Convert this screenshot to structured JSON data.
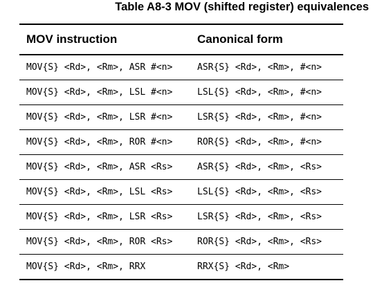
{
  "caption": "Table A8-3 MOV (shifted register) equivalences",
  "columns": {
    "instruction": "MOV instruction",
    "canonical": "Canonical form"
  },
  "rows": [
    {
      "instruction": "MOV{S} <Rd>, <Rm>, ASR #<n>",
      "canonical": "ASR{S} <Rd>, <Rm>, #<n>"
    },
    {
      "instruction": "MOV{S} <Rd>, <Rm>, LSL #<n>",
      "canonical": "LSL{S} <Rd>, <Rm>, #<n>"
    },
    {
      "instruction": "MOV{S} <Rd>, <Rm>, LSR #<n>",
      "canonical": "LSR{S} <Rd>, <Rm>, #<n>"
    },
    {
      "instruction": "MOV{S} <Rd>, <Rm>, ROR #<n>",
      "canonical": "ROR{S} <Rd>, <Rm>, #<n>"
    },
    {
      "instruction": "MOV{S} <Rd>, <Rm>, ASR <Rs>",
      "canonical": "ASR{S} <Rd>, <Rm>, <Rs>"
    },
    {
      "instruction": "MOV{S} <Rd>, <Rm>, LSL <Rs>",
      "canonical": "LSL{S} <Rd>, <Rm>, <Rs>"
    },
    {
      "instruction": "MOV{S} <Rd>, <Rm>, LSR <Rs>",
      "canonical": "LSR{S} <Rd>, <Rm>, <Rs>"
    },
    {
      "instruction": "MOV{S} <Rd>, <Rm>, ROR <Rs>",
      "canonical": "ROR{S} <Rd>, <Rm>, <Rs>"
    },
    {
      "instruction": "MOV{S} <Rd>, <Rm>, RRX",
      "canonical": "RRX{S} <Rd>, <Rm>"
    }
  ]
}
